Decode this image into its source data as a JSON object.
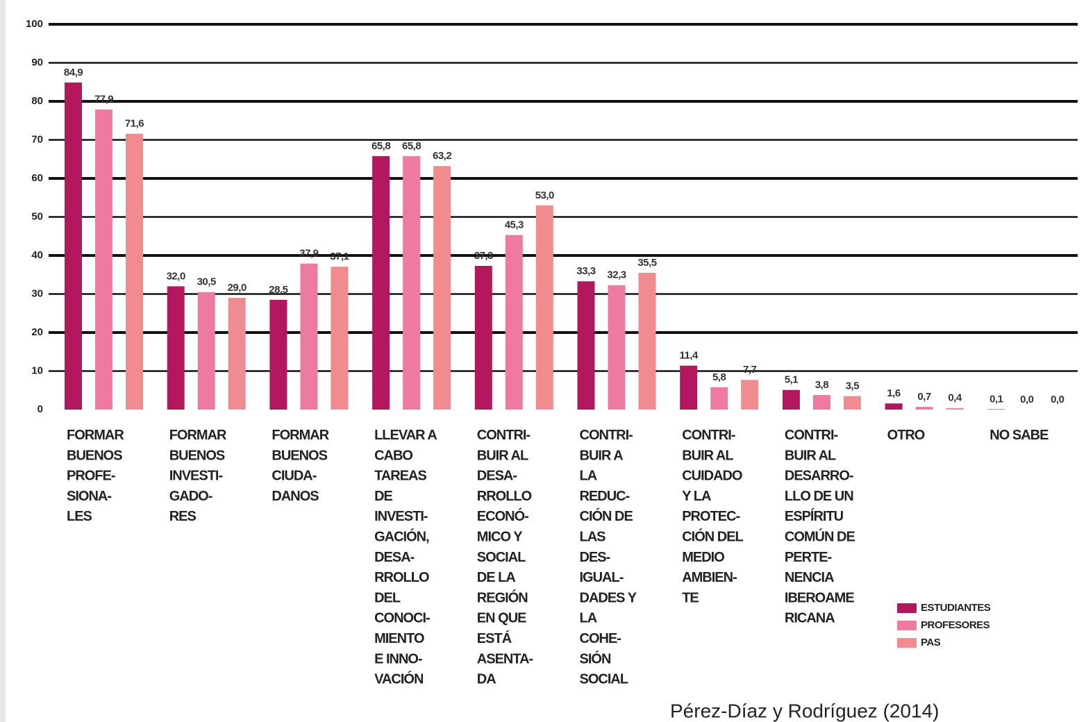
{
  "chart_data": {
    "type": "bar",
    "categories": [
      "FORMAR\nBUENOS\nPROFE-\nSIONA-\nLES",
      "FORMAR\nBUENOS\nINVESTI-\nGADO-\nRES",
      "FORMAR\nBUENOS\nCIUDA-\nDANOS",
      "LLEVAR A\nCABO\nTAREAS\nDE\nINVESTI-\nGACIÓN,\nDESA-\nRROLLO\nDEL\nCONOCI-\nMIENTO\nE INNO-\nVACIÓN",
      "CONTRI-\nBUIR AL\nDESA-\nRROLLO\nECONÓ-\nMICO Y\nSOCIAL\nDE LA\nREGIÓN\nEN QUE\nESTÁ\nASENTA-\nDA",
      "CONTRI-\nBUIR A\nLA\nREDUC-\nCIÓN DE\nLAS\nDES-\nIGUAL-\nDADES Y\nLA\nCOHE-\nSIÓN\nSOCIAL",
      "CONTRI-\nBUIR AL\nCUIDADO\nY LA\nPROTEC-\nCIÓN DEL\nMEDIO\nAMBIEN-\nTE",
      "CONTRI-\nBUIR AL\nDESARRO-\nLLO DE UN\nESPÍRITU\nCOMÚN DE\nPERTE-\nNENCIA\nIBEROAME\nRICANA",
      "OTRO",
      "NO SABE"
    ],
    "series": [
      {
        "name": "ESTUDIANTES",
        "color": "#b3185f",
        "values": [
          84.9,
          32.0,
          28.5,
          65.8,
          37.3,
          33.3,
          11.4,
          5.1,
          1.6,
          0.1
        ],
        "value_labels": [
          "84,9",
          "32,0",
          "28,5",
          "65,8",
          "37,3",
          "33,3",
          "11,4",
          "5,1",
          "1,6",
          "0,1"
        ]
      },
      {
        "name": "PROFESORES",
        "color": "#ee7aa2",
        "values": [
          77.9,
          30.5,
          37.9,
          65.8,
          45.3,
          32.3,
          5.8,
          3.8,
          0.7,
          0.0
        ],
        "value_labels": [
          "77,9",
          "30,5",
          "37,9",
          "65,8",
          "45,3",
          "32,3",
          "5,8",
          "3,8",
          "0,7",
          "0,0"
        ]
      },
      {
        "name": "PAS",
        "color": "#f08b8f",
        "values": [
          71.6,
          29.0,
          37.1,
          63.2,
          53.0,
          35.5,
          7.7,
          3.5,
          0.4,
          0.0
        ],
        "value_labels": [
          "71,6",
          "29,0",
          "37,1",
          "63,2",
          "53,0",
          "35,5",
          "7,7",
          "3,5",
          "0,4",
          "0,0"
        ]
      }
    ],
    "ylim": [
      0,
      100
    ],
    "yticks": [
      0,
      10,
      20,
      30,
      40,
      50,
      60,
      70,
      80,
      90,
      100
    ],
    "grid": true,
    "legend": "lower right",
    "source": "Pérez-Díaz y Rodríguez (2014)"
  }
}
